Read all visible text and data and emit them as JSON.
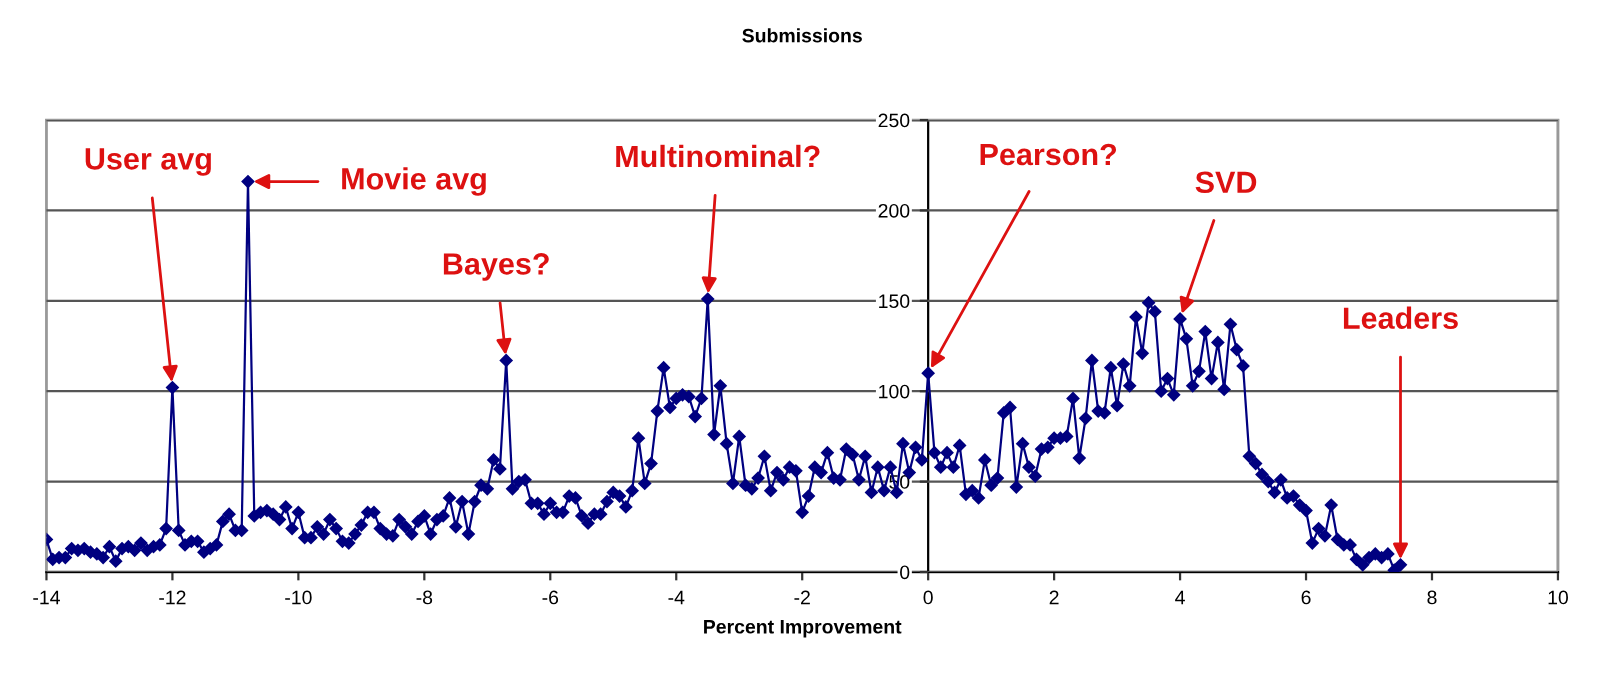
{
  "chart_data": {
    "type": "line",
    "title": "Submissions",
    "xlabel": "Percent Improvement",
    "x": [
      -14.0,
      -13.9,
      -13.8,
      -13.7,
      -13.6,
      -13.5,
      -13.4,
      -13.3,
      -13.2,
      -13.1,
      -13.0,
      -12.9,
      -12.8,
      -12.7,
      -12.6,
      -12.5,
      -12.4,
      -12.3,
      -12.2,
      -12.1,
      -12.0,
      -11.9,
      -11.8,
      -11.7,
      -11.6,
      -11.5,
      -11.4,
      -11.3,
      -11.2,
      -11.1,
      -11.0,
      -10.9,
      -10.8,
      -10.7,
      -10.6,
      -10.5,
      -10.4,
      -10.3,
      -10.2,
      -10.1,
      -10.0,
      -9.9,
      -9.8,
      -9.7,
      -9.6,
      -9.5,
      -9.4,
      -9.3,
      -9.2,
      -9.1,
      -9.0,
      -8.9,
      -8.8,
      -8.7,
      -8.6,
      -8.5,
      -8.4,
      -8.3,
      -8.2,
      -8.1,
      -8.0,
      -7.9,
      -7.8,
      -7.7,
      -7.6,
      -7.5,
      -7.4,
      -7.3,
      -7.2,
      -7.1,
      -7.0,
      -6.9,
      -6.8,
      -6.7,
      -6.6,
      -6.5,
      -6.4,
      -6.3,
      -6.2,
      -6.1,
      -6.0,
      -5.9,
      -5.8,
      -5.7,
      -5.6,
      -5.5,
      -5.4,
      -5.3,
      -5.2,
      -5.1,
      -5.0,
      -4.9,
      -4.8,
      -4.7,
      -4.6,
      -4.5,
      -4.4,
      -4.3,
      -4.2,
      -4.1,
      -4.0,
      -3.9,
      -3.8,
      -3.7,
      -3.6,
      -3.5,
      -3.4,
      -3.3,
      -3.2,
      -3.1,
      -3.0,
      -2.9,
      -2.8,
      -2.7,
      -2.6,
      -2.5,
      -2.4,
      -2.3,
      -2.2,
      -2.1,
      -2.0,
      -1.9,
      -1.8,
      -1.7,
      -1.6,
      -1.5,
      -1.4,
      -1.3,
      -1.2,
      -1.1,
      -1.0,
      -0.9,
      -0.8,
      -0.7,
      -0.6,
      -0.5,
      -0.4,
      -0.3,
      -0.2,
      -0.1,
      0.0,
      0.1,
      0.2,
      0.3,
      0.4,
      0.5,
      0.6,
      0.7,
      0.8,
      0.9,
      1.0,
      1.1,
      1.2,
      1.3,
      1.4,
      1.5,
      1.6,
      1.7,
      1.8,
      1.9,
      2.0,
      2.1,
      2.2,
      2.3,
      2.4,
      2.5,
      2.6,
      2.7,
      2.8,
      2.9,
      3.0,
      3.1,
      3.2,
      3.3,
      3.4,
      3.5,
      3.6,
      3.7,
      3.8,
      3.9,
      4.0,
      4.1,
      4.2,
      4.3,
      4.4,
      4.5,
      4.6,
      4.7,
      4.8,
      4.9,
      5.0,
      5.1,
      5.2,
      5.3,
      5.4,
      5.5,
      5.6,
      5.7,
      5.8,
      5.9,
      6.0,
      6.1,
      6.2,
      6.3,
      6.4,
      6.5,
      6.6,
      6.7,
      6.8,
      6.9,
      7.0,
      7.1,
      7.2,
      7.3,
      7.4,
      7.5
    ],
    "series": [
      {
        "color": "#000080",
        "values": [
          18,
          7,
          8,
          8,
          13,
          12,
          13,
          11,
          10,
          8,
          14,
          6,
          13,
          14,
          12,
          16,
          12,
          14,
          15,
          24,
          102,
          23,
          15,
          17,
          17,
          11,
          13,
          15,
          28,
          32,
          23,
          23,
          216,
          31,
          33,
          34,
          32,
          29,
          36,
          24,
          33,
          19,
          19,
          25,
          21,
          29,
          24,
          17,
          16,
          21,
          26,
          33,
          33,
          24,
          21,
          20,
          29,
          25,
          21,
          28,
          31,
          21,
          29,
          31,
          41,
          25,
          39,
          21,
          39,
          48,
          46,
          62,
          57,
          117,
          46,
          50,
          51,
          38,
          38,
          32,
          38,
          33,
          33,
          42,
          41,
          31,
          27,
          32,
          32,
          39,
          44,
          42,
          36,
          45,
          74,
          49,
          60,
          89,
          113,
          91,
          96,
          98,
          97,
          86,
          96,
          151,
          76,
          103,
          71,
          49,
          75,
          48,
          46,
          52,
          64,
          45,
          55,
          51,
          58,
          56,
          33,
          42,
          58,
          55,
          66,
          52,
          51,
          68,
          65,
          51,
          64,
          44,
          58,
          45,
          58,
          44,
          71,
          55,
          69,
          62,
          110,
          66,
          58,
          66,
          58,
          70,
          43,
          45,
          41,
          62,
          48,
          52,
          88,
          91,
          47,
          71,
          58,
          53,
          68,
          69,
          74,
          74,
          75,
          96,
          63,
          85,
          117,
          89,
          88,
          113,
          92,
          115,
          103,
          141,
          121,
          149,
          144,
          100,
          107,
          98,
          140,
          129,
          103,
          111,
          133,
          107,
          127,
          101,
          137,
          123,
          114,
          64,
          60,
          54,
          50,
          44,
          51,
          41,
          42,
          37,
          34,
          16,
          24,
          20,
          37,
          18,
          15,
          15,
          7,
          4,
          8,
          10,
          8,
          10,
          1,
          4
        ]
      }
    ],
    "xlim": [
      -14,
      10
    ],
    "xticks": [
      -14,
      -12,
      -10,
      -8,
      -6,
      -4,
      -2,
      0,
      2,
      4,
      6,
      8,
      10
    ],
    "ylim": [
      0,
      250
    ],
    "yticks": [
      0,
      50,
      100,
      150,
      200,
      250
    ],
    "grid": "y",
    "marker": "diamond",
    "line_style": "solid",
    "annotations": [
      {
        "text": "User avg",
        "x": -12.0,
        "y": 102
      },
      {
        "text": "Movie avg",
        "x": -10.8,
        "y": 216
      },
      {
        "text": "Bayes?",
        "x": -6.7,
        "y": 117
      },
      {
        "text": "Multinominal?",
        "x": -3.5,
        "y": 151
      },
      {
        "text": "Pearson?",
        "x": 0.0,
        "y": 110
      },
      {
        "text": "SVD",
        "x": 4.0,
        "y": 140
      },
      {
        "text": "Leaders",
        "x": 7.5,
        "y": 4
      }
    ]
  }
}
